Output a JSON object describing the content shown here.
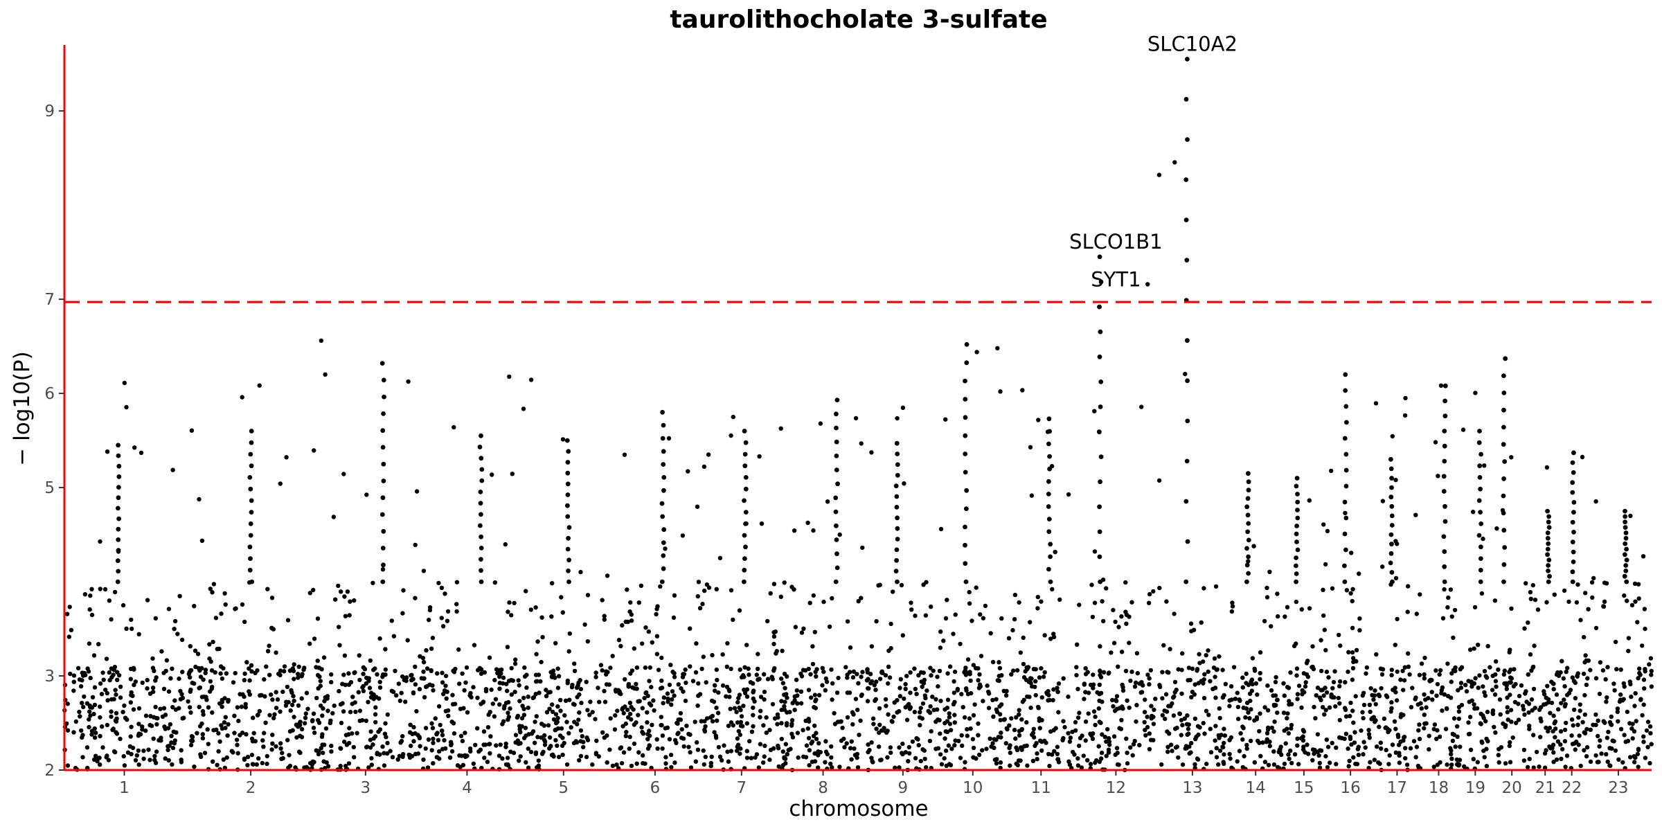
{
  "chart_data": {
    "type": "scatter",
    "subtype": "manhattan",
    "title": "taurolithocholate 3-sulfate",
    "xlabel": "chromosome",
    "ylabel": "− log10(P)",
    "ylim": [
      2,
      9.7
    ],
    "yticks": [
      2,
      3,
      5,
      6,
      7,
      9
    ],
    "grid": false,
    "legend": "none",
    "colors": {
      "odd": "#8b008b",
      "even": "#ee7600",
      "axis": "#ff0000",
      "threshold": "#ff0000"
    },
    "significance_threshold": 6.97,
    "chromosomes": [
      {
        "label": "1",
        "start": 0,
        "end": 1.8,
        "peak": 5.45
      },
      {
        "label": "2",
        "start": 1.85,
        "end": 3.75,
        "peak": 5.6
      },
      {
        "label": "3",
        "start": 3.75,
        "end": 5.3,
        "peak": 6.32
      },
      {
        "label": "4",
        "start": 5.3,
        "end": 6.8,
        "peak": 5.55
      },
      {
        "label": "5",
        "start": 6.8,
        "end": 8.2,
        "peak": 5.5
      },
      {
        "label": "6",
        "start": 8.2,
        "end": 9.55,
        "peak": 5.8
      },
      {
        "label": "7",
        "start": 9.55,
        "end": 10.8,
        "peak": 5.6
      },
      {
        "label": "8",
        "start": 10.8,
        "end": 12.0,
        "peak": 5.93
      },
      {
        "label": "9",
        "start": 12.05,
        "end": 13.15,
        "peak": 5.47
      },
      {
        "label": "10",
        "start": 13.15,
        "end": 14.15,
        "peak": 6.52
      },
      {
        "label": "11",
        "start": 14.15,
        "end": 15.2,
        "peak": 5.73
      },
      {
        "label": "12",
        "start": 15.2,
        "end": 16.4,
        "peak": 7.45
      },
      {
        "label": "13",
        "start": 16.45,
        "end": 17.45,
        "peak": 9.55
      },
      {
        "label": "14",
        "start": 17.5,
        "end": 18.3,
        "peak": 5.15
      },
      {
        "label": "15",
        "start": 18.3,
        "end": 18.95,
        "peak": 5.1
      },
      {
        "label": "16",
        "start": 18.95,
        "end": 19.7,
        "peak": 6.2
      },
      {
        "label": "17",
        "start": 19.7,
        "end": 20.35,
        "peak": 5.3
      },
      {
        "label": "18",
        "start": 20.35,
        "end": 20.95,
        "peak": 6.08
      },
      {
        "label": "19",
        "start": 20.95,
        "end": 21.45,
        "peak": 5.6
      },
      {
        "label": "20",
        "start": 21.45,
        "end": 22.05,
        "peak": 6.37
      },
      {
        "label": "21",
        "start": 22.05,
        "end": 22.45,
        "peak": 4.75
      },
      {
        "label": "22",
        "start": 22.45,
        "end": 22.85,
        "peak": 5.37
      },
      {
        "label": "23",
        "start": 22.85,
        "end": 23.85,
        "peak": 4.75
      }
    ],
    "annotations": [
      {
        "label": "SLC10A2",
        "chromosome": "13",
        "y": 9.55
      },
      {
        "label": "SLCO1B1",
        "chromosome": "12",
        "y": 7.45
      },
      {
        "label": "SYT1",
        "chromosome": "12",
        "y": 7.05
      }
    ]
  }
}
